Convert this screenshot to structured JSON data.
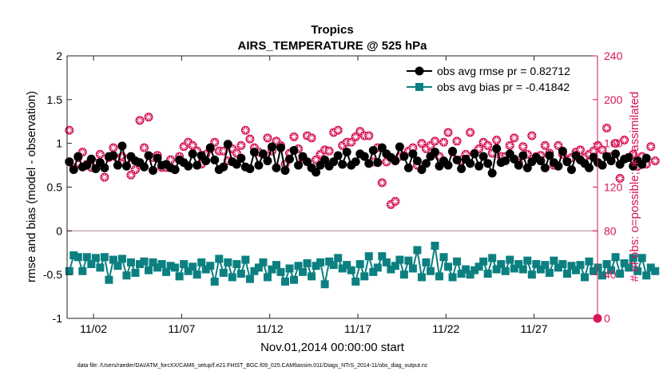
{
  "chart_data": {
    "type": "line",
    "title": "Tropics",
    "subtitle": "AIRS_TEMPERATURE @ 525 hPa",
    "xlabel": "Nov.01,2014 00:00:00 start",
    "ylabel": "rmse and bias (model - observation)",
    "ylabel_right": "# of obs: o=possible; ∗=assimilated",
    "footnote": "data file: /Users/raeder/DAI/ATM_forcXX/CAM6_setup/f.e21.FHIST_BGC.f09_025.CAM6assim.011/Diags_NTrS_2014-11/obs_diag_output.nc",
    "xlim": [
      0.5,
      30.6
    ],
    "ylim": [
      -1,
      2
    ],
    "ylim_right": [
      0,
      240
    ],
    "x_ticks": [
      {
        "x": 2,
        "label": "11/02"
      },
      {
        "x": 7,
        "label": "11/07"
      },
      {
        "x": 12,
        "label": "11/12"
      },
      {
        "x": 17,
        "label": "11/17"
      },
      {
        "x": 22,
        "label": "11/22"
      },
      {
        "x": 27,
        "label": "11/27"
      }
    ],
    "y_ticks": [
      {
        "v": -1,
        "label": "-1"
      },
      {
        "v": -0.5,
        "label": "-0.5"
      },
      {
        "v": 0,
        "label": "0"
      },
      {
        "v": 0.5,
        "label": "0.5"
      },
      {
        "v": 1,
        "label": "1"
      },
      {
        "v": 1.5,
        "label": "1.5"
      },
      {
        "v": 2,
        "label": "2"
      }
    ],
    "y_ticks_right": [
      {
        "v": 0,
        "label": "0"
      },
      {
        "v": 40,
        "label": "40"
      },
      {
        "v": 80,
        "label": "80"
      },
      {
        "v": 120,
        "label": "120"
      },
      {
        "v": 160,
        "label": "160"
      },
      {
        "v": 200,
        "label": "200"
      },
      {
        "v": 240,
        "label": "240"
      }
    ],
    "series": [
      {
        "name": "obs avg rmse pr = 0.82712",
        "color": "#000000",
        "marker": "circle",
        "x_start": 0.625,
        "x_step": 0.25,
        "values": [
          0.79,
          0.7,
          0.85,
          0.73,
          0.75,
          0.82,
          0.71,
          0.78,
          0.72,
          0.85,
          0.86,
          0.75,
          0.97,
          0.74,
          0.85,
          0.8,
          0.78,
          0.73,
          0.86,
          0.69,
          0.83,
          0.75,
          0.76,
          0.72,
          0.7,
          0.81,
          0.78,
          0.74,
          0.88,
          0.75,
          0.86,
          0.8,
          0.95,
          0.81,
          0.7,
          0.73,
          0.99,
          0.79,
          0.76,
          0.83,
          0.73,
          0.71,
          0.9,
          0.75,
          0.88,
          0.8,
          0.96,
          0.72,
          0.95,
          0.69,
          0.82,
          0.92,
          0.75,
          0.85,
          0.79,
          0.72,
          0.67,
          0.75,
          0.81,
          0.74,
          0.79,
          0.86,
          0.76,
          0.9,
          0.75,
          0.79,
          0.88,
          0.85,
          0.77,
          0.92,
          0.78,
          0.95,
          0.88,
          0.84,
          0.8,
          0.96,
          0.85,
          0.72,
          0.88,
          0.8,
          0.7,
          0.77,
          0.85,
          0.9,
          0.74,
          0.8,
          0.75,
          0.91,
          0.81,
          0.71,
          0.82,
          0.77,
          0.88,
          0.74,
          0.85,
          0.77,
          0.66,
          0.94,
          0.78,
          0.8,
          0.88,
          0.82,
          0.75,
          0.86,
          0.72,
          0.79,
          0.84,
          0.8,
          0.72,
          0.86,
          0.78,
          0.74,
          0.91,
          0.79,
          0.7,
          0.86,
          0.81,
          0.77,
          0.72,
          0.84,
          0.78,
          0.75,
          0.85,
          0.8,
          0.88,
          0.76,
          0.82,
          0.84,
          0.74,
          0.8,
          0.76,
          0.83
        ]
      },
      {
        "name": "obs avg bias pr = -0.41842",
        "color": "#0c8080",
        "marker": "square",
        "x_start": 0.625,
        "x_step": 0.25,
        "values": [
          -0.46,
          -0.28,
          -0.3,
          -0.46,
          -0.3,
          -0.38,
          -0.31,
          -0.42,
          -0.3,
          -0.56,
          -0.33,
          -0.4,
          -0.32,
          -0.51,
          -0.36,
          -0.48,
          -0.38,
          -0.35,
          -0.45,
          -0.36,
          -0.42,
          -0.38,
          -0.47,
          -0.4,
          -0.42,
          -0.52,
          -0.38,
          -0.46,
          -0.41,
          -0.5,
          -0.36,
          -0.44,
          -0.4,
          -0.58,
          -0.32,
          -0.48,
          -0.36,
          -0.53,
          -0.38,
          -0.49,
          -0.33,
          -0.55,
          -0.46,
          -0.42,
          -0.36,
          -0.53,
          -0.44,
          -0.39,
          -0.47,
          -0.58,
          -0.43,
          -0.56,
          -0.4,
          -0.47,
          -0.37,
          -0.52,
          -0.4,
          -0.36,
          -0.61,
          -0.35,
          -0.39,
          -0.31,
          -0.43,
          -0.39,
          -0.45,
          -0.58,
          -0.38,
          -0.52,
          -0.29,
          -0.47,
          -0.42,
          -0.29,
          -0.36,
          -0.44,
          -0.4,
          -0.33,
          -0.5,
          -0.34,
          -0.43,
          -0.22,
          -0.53,
          -0.36,
          -0.46,
          -0.17,
          -0.52,
          -0.3,
          -0.41,
          -0.53,
          -0.35,
          -0.49,
          -0.44,
          -0.5,
          -0.45,
          -0.41,
          -0.35,
          -0.49,
          -0.31,
          -0.44,
          -0.38,
          -0.46,
          -0.33,
          -0.43,
          -0.38,
          -0.44,
          -0.34,
          -0.5,
          -0.38,
          -0.44,
          -0.39,
          -0.48,
          -0.34,
          -0.42,
          -0.38,
          -0.49,
          -0.4,
          -0.45,
          -0.39,
          -0.53,
          -0.35,
          -0.46,
          -0.42,
          -0.51,
          -0.38,
          -0.45,
          -0.3,
          -0.49,
          -0.37,
          -0.42,
          -0.31,
          -0.46,
          -0.31,
          -0.51,
          -0.42,
          -0.46
        ]
      }
    ],
    "obs_counts": {
      "name": "# of obs",
      "color": "#d6165a",
      "marker_possible": "circle",
      "marker_assimilated": "asterisk",
      "x_start": 0.625,
      "x_step": 0.25,
      "values": [
        172,
        138,
        147,
        152,
        141,
        138,
        142,
        150,
        129,
        147,
        156,
        146,
        148,
        145,
        131,
        136,
        181,
        156,
        184,
        147,
        149,
        138,
        138,
        145,
        136,
        148,
        157,
        161,
        158,
        153,
        141,
        150,
        155,
        161,
        153,
        153,
        144,
        155,
        151,
        158,
        172,
        164,
        156,
        152,
        150,
        165,
        153,
        162,
        158,
        141,
        151,
        166,
        155,
        146,
        167,
        165,
        145,
        150,
        154,
        153,
        170,
        172,
        158,
        161,
        161,
        166,
        171,
        167,
        167,
        143,
        156,
        124,
        143,
        104,
        107,
        148,
        149,
        153,
        156,
        140,
        160,
        155,
        158,
        162,
        148,
        161,
        170,
        152,
        162,
        145,
        150,
        170,
        151,
        155,
        161,
        158,
        151,
        163,
        148,
        148,
        158,
        165,
        142,
        157,
        150,
        167,
        148,
        149,
        158,
        151,
        140,
        158,
        150,
        145,
        147,
        152,
        154,
        147,
        150,
        153,
        158,
        154,
        174,
        148,
        160,
        128,
        163,
        147,
        150,
        139,
        148,
        141,
        157,
        144
      ]
    },
    "legend": [
      "obs avg rmse pr = 0.82712",
      "obs avg bias pr = -0.41842"
    ],
    "legend_position": "top-right",
    "grid": false
  }
}
